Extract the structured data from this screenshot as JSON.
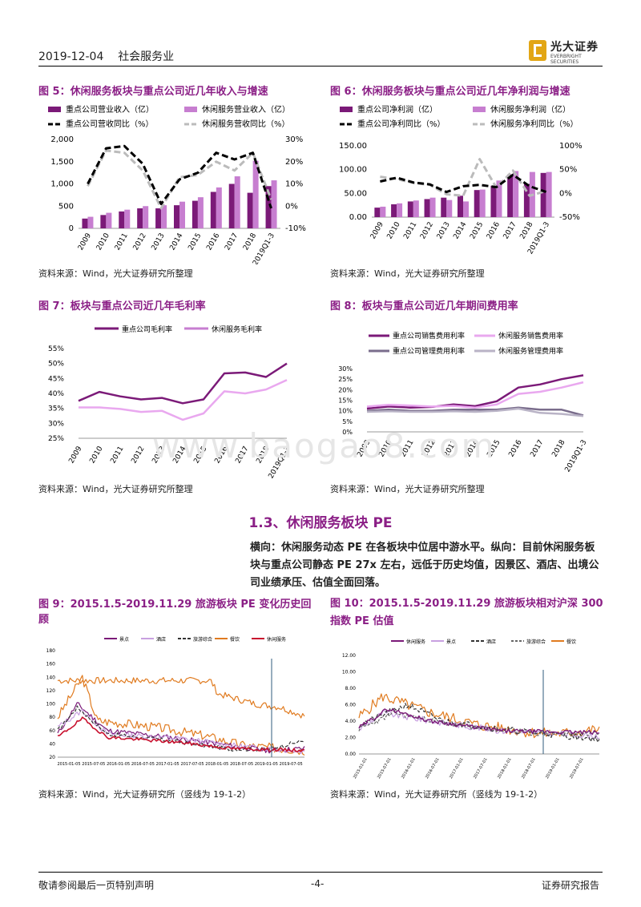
{
  "header": {
    "date": "2019-12-04",
    "sector": "社会服务业",
    "logo_cn": "光大证券",
    "logo_en": "EVERBRIGHT SECURITIES"
  },
  "fig5": {
    "title": "图 5：休闲服务板块与重点公司近几年收入与增速",
    "source": "资料来源：Wind，光大证券研究所整理",
    "legend": [
      "重点公司营业收入（亿）",
      "休闲服务营业收入（亿）",
      "重点公司营收同比（%）",
      "休闲服务营收同比（%）"
    ],
    "y_left_ticks": [
      "2,000",
      "1,500",
      "1,000",
      "500",
      "0"
    ],
    "y_right_ticks": [
      "30%",
      "20%",
      "10%",
      "0%",
      "-10%"
    ],
    "categories": [
      "2009",
      "2010",
      "2011",
      "2012",
      "2013",
      "2014",
      "2015",
      "2016",
      "2017",
      "2018",
      "2019Q1-3"
    ]
  },
  "fig6": {
    "title": "图 6：休闲服务板块与重点公司近几年净利润与增速",
    "source": "资料来源：Wind，光大证券研究所整理",
    "legend": [
      "重点公司净利润（亿）",
      "休闲服务净利润（亿）",
      "重点公司净利同比（%）",
      "休闲服务净利同比（%）"
    ],
    "y_left_ticks": [
      "150.00",
      "100.00",
      "50.00",
      "0.00"
    ],
    "y_right_ticks": [
      "100%",
      "50%",
      "0%",
      "-50%"
    ],
    "categories": [
      "2009",
      "2010",
      "2011",
      "2012",
      "2013",
      "2014",
      "2015",
      "2016",
      "2017",
      "2018",
      "2019Q1-3"
    ]
  },
  "fig7": {
    "title": "图 7：板块与重点公司近几年毛利率",
    "source": "资料来源：Wind，光大证券研究所整理",
    "legend": [
      "重点公司毛利率",
      "休闲服务毛利率"
    ],
    "y_ticks": [
      "55%",
      "50%",
      "45%",
      "40%",
      "35%",
      "30%",
      "25%"
    ],
    "categories": [
      "2009",
      "2010",
      "2011",
      "2012",
      "2013",
      "2014",
      "2015",
      "2016",
      "2017",
      "2018",
      "2019Q1-3"
    ]
  },
  "fig8": {
    "title": "图 8：板块与重点公司近几年期间费用率",
    "source": "资料来源：Wind，光大证券研究所整理",
    "legend": [
      "重点公司销售费用利率",
      "休闲服务销售费用率",
      "重点公司管理费用利率",
      "休闲服务管理费用率"
    ],
    "y_ticks": [
      "30%",
      "25%",
      "20%",
      "15%",
      "10%",
      "5%",
      "0%"
    ],
    "categories": [
      "2009",
      "2010",
      "2011",
      "2012",
      "2013",
      "2014",
      "2015",
      "2016",
      "2017",
      "2018",
      "2019Q1-3"
    ]
  },
  "section": {
    "heading": "1.3、休闲服务板块 PE",
    "paragraph": "横向：休闲服务动态 PE 在各板块中位居中游水平。纵向：目前休闲服务板块与重点公司静态 PE 27x 左右，远低于历史均值，因景区、酒店、出境公司业绩承压、估值全面回落。"
  },
  "fig9": {
    "title": "图 9：2015.1.5-2019.11.29 旅游板块 PE 变化历史回顾",
    "source": "资料来源：Wind，光大证券研究所（竖线为 19-1-2）",
    "legend": [
      "景点",
      "酒店",
      "旅游综合",
      "餐饮",
      "休闲服务"
    ],
    "y_ticks": [
      "180",
      "160",
      "140",
      "120",
      "100",
      "80",
      "60",
      "40",
      "20"
    ],
    "x_ticks": [
      "2015-01-05",
      "2015-07-05",
      "2016-01-05",
      "2016-07-05",
      "2017-01-05",
      "2017-07-05",
      "2018-01-05",
      "2018-07-05",
      "2019-01-05",
      "2019-07-05"
    ]
  },
  "fig10": {
    "title": "图 10：2015.1.5-2019.11.29 旅游板块相对沪深 300 指数 PE 估值",
    "source": "资料来源：Wind，光大证券研究所（竖线为 19-1-2）",
    "legend": [
      "休闲服务",
      "景点",
      "酒店",
      "旅游综合",
      "餐饮"
    ],
    "y_ticks": [
      "12.00",
      "10.00",
      "8.00",
      "6.00",
      "4.00",
      "2.00",
      "0.00"
    ],
    "x_ticks": [
      "2015-01-01",
      "2015-07-01",
      "2016-01-01",
      "2016-07-01",
      "2017-01-01",
      "2017-07-01",
      "2018-01-01",
      "2018-07-01",
      "2019-01-01",
      "2019-07-01"
    ]
  },
  "watermark": "www.baogao8.com",
  "footer": {
    "left": "敬请参阅最后一页特别声明",
    "center": "-4-",
    "right": "证券研究报告"
  },
  "colors": {
    "dark_purple": "#7b1a78",
    "light_purple": "#c77ed0",
    "title_purple": "#8b1f86",
    "black": "#000000",
    "gray": "#bbbbbb"
  },
  "chart_data": [
    {
      "type": "bar",
      "categories": [
        "2009",
        "2010",
        "2011",
        "2012",
        "2013",
        "2014",
        "2015",
        "2016",
        "2017",
        "2018",
        "2019Q1-3"
      ],
      "series": [
        {
          "name": "重点公司营业收入（亿）",
          "values": [
            220,
            300,
            380,
            450,
            450,
            520,
            620,
            820,
            1000,
            800,
            950
          ]
        },
        {
          "name": "休闲服务营业收入（亿）",
          "values": [
            260,
            350,
            420,
            500,
            520,
            600,
            700,
            920,
            1170,
            1520,
            1080
          ]
        },
        {
          "name": "重点公司营收同比（%）",
          "values": [
            10,
            26,
            27,
            19,
            1,
            12,
            15,
            24,
            21,
            24,
            -1
          ]
        },
        {
          "name": "休闲服务营收同比（%）",
          "values": [
            9,
            25,
            24,
            16,
            -1,
            13,
            14,
            20,
            16,
            24,
            3
          ]
        }
      ],
      "ylim": [
        0,
        2000
      ],
      "y2lim": [
        -10,
        30
      ]
    },
    {
      "type": "bar",
      "categories": [
        "2009",
        "2010",
        "2011",
        "2012",
        "2013",
        "2014",
        "2015",
        "2016",
        "2017",
        "2018",
        "2019Q1-3"
      ],
      "series": [
        {
          "name": "重点公司净利润（亿）",
          "values": [
            20,
            27,
            33,
            38,
            41,
            45,
            57,
            66,
            90,
            70,
            93
          ]
        },
        {
          "name": "休闲服务净利润（亿）",
          "values": [
            22,
            29,
            35,
            41,
            36,
            33,
            58,
            77,
            97,
            95,
            95
          ]
        },
        {
          "name": "重点公司净利同比（%）",
          "values": [
            25,
            33,
            23,
            19,
            3,
            15,
            18,
            13,
            39,
            15,
            3
          ]
        },
        {
          "name": "休闲服务净利同比（%）",
          "values": [
            35,
            30,
            22,
            18,
            -2,
            -5,
            72,
            12,
            48,
            -5,
            5
          ]
        }
      ],
      "ylim": [
        0,
        150
      ],
      "y2lim": [
        -50,
        100
      ]
    },
    {
      "type": "line",
      "categories": [
        "2009",
        "2010",
        "2011",
        "2012",
        "2013",
        "2014",
        "2015",
        "2016",
        "2017",
        "2018",
        "2019Q1-3"
      ],
      "series": [
        {
          "name": "重点公司毛利率",
          "values": [
            37.5,
            40.5,
            39,
            38,
            38.5,
            36.7,
            38,
            46.7,
            47,
            45.5,
            50
          ]
        },
        {
          "name": "休闲服务毛利率",
          "values": [
            35.3,
            35.3,
            34.8,
            33.8,
            34.2,
            31.2,
            33.3,
            40.7,
            40,
            41.3,
            44.5
          ]
        }
      ],
      "ylim": [
        25,
        55
      ]
    },
    {
      "type": "line",
      "categories": [
        "2009",
        "2010",
        "2011",
        "2012",
        "2013",
        "2014",
        "2015",
        "2016",
        "2017",
        "2018",
        "2019Q1-3"
      ],
      "series": [
        {
          "name": "重点公司销售费用利率",
          "values": [
            11,
            12,
            11.5,
            11.8,
            13,
            12.2,
            14.5,
            21,
            22.5,
            25,
            26.8
          ]
        },
        {
          "name": "休闲服务销售费用率",
          "values": [
            12,
            12.8,
            12.5,
            12,
            12.3,
            11.5,
            13,
            18,
            19,
            21,
            23.5
          ]
        },
        {
          "name": "重点公司管理费用利率",
          "values": [
            10,
            10.5,
            10,
            10,
            10.5,
            10.5,
            10.5,
            11.5,
            10.5,
            10.5,
            7.8
          ]
        },
        {
          "name": "休闲服务管理费用率",
          "values": [
            9.5,
            9.8,
            9.5,
            9.5,
            9.8,
            9.5,
            10,
            11,
            9,
            8.5,
            7.5
          ]
        }
      ],
      "ylim": [
        0,
        30
      ]
    }
  ]
}
